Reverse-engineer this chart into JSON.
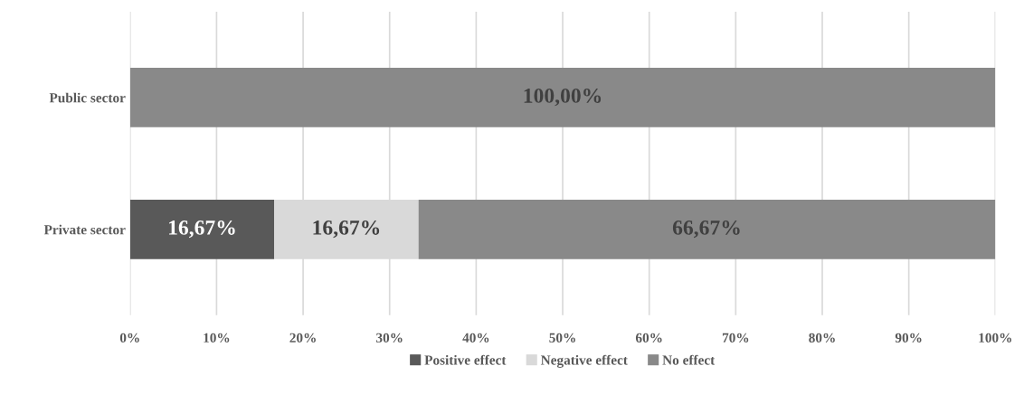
{
  "chart_data": {
    "type": "bar",
    "orientation": "horizontal",
    "stacked": true,
    "categories": [
      "Public sector",
      "Private sector"
    ],
    "series": [
      {
        "name": "Positive effect",
        "color": "#595959",
        "values": [
          0,
          16.67
        ],
        "value_labels": [
          null,
          "16,67%"
        ]
      },
      {
        "name": "Negative effect",
        "color": "#d9d9d9",
        "values": [
          0,
          16.67
        ],
        "value_labels": [
          null,
          "16,67%"
        ]
      },
      {
        "name": "No effect",
        "color": "#898989",
        "values": [
          100,
          66.67
        ],
        "value_labels": [
          "100,00%",
          "66,67%"
        ]
      }
    ],
    "xlim": [
      0,
      100
    ],
    "xticks": [
      {
        "value": 0,
        "label": "0%"
      },
      {
        "value": 10,
        "label": "10%"
      },
      {
        "value": 20,
        "label": "20%"
      },
      {
        "value": 30,
        "label": "30%"
      },
      {
        "value": 40,
        "label": "40%"
      },
      {
        "value": 50,
        "label": "50%"
      },
      {
        "value": 60,
        "label": "60%"
      },
      {
        "value": 70,
        "label": "70%"
      },
      {
        "value": 80,
        "label": "80%"
      },
      {
        "value": 90,
        "label": "90%"
      },
      {
        "value": 100,
        "label": "100%"
      }
    ],
    "grid": "x",
    "legend": "bottom"
  }
}
